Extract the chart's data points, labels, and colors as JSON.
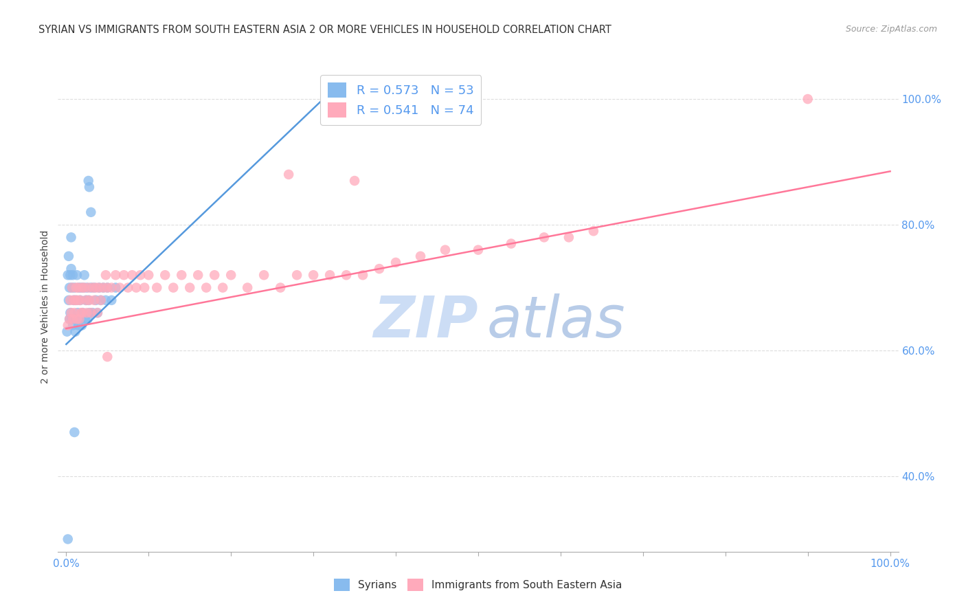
{
  "title": "SYRIAN VS IMMIGRANTS FROM SOUTH EASTERN ASIA 2 OR MORE VEHICLES IN HOUSEHOLD CORRELATION CHART",
  "source": "Source: ZipAtlas.com",
  "ylabel": "2 or more Vehicles in Household",
  "syrians_color": "#88BBEE",
  "sea_color": "#FFAABB",
  "line_blue": "#5599DD",
  "line_pink": "#FF7799",
  "bg_color": "#FFFFFF",
  "grid_color": "#DDDDDD",
  "axis_color": "#5599EE",
  "title_color": "#333333",
  "source_color": "#999999",
  "watermark_zip_color": "#CCDDF5",
  "watermark_atlas_color": "#B8CCE8",
  "syrians_x": [
    0.001,
    0.002,
    0.003,
    0.003,
    0.004,
    0.004,
    0.005,
    0.005,
    0.006,
    0.006,
    0.007,
    0.007,
    0.008,
    0.008,
    0.009,
    0.01,
    0.01,
    0.011,
    0.012,
    0.013,
    0.014,
    0.015,
    0.015,
    0.016,
    0.017,
    0.018,
    0.019,
    0.02,
    0.021,
    0.022,
    0.023,
    0.024,
    0.025,
    0.026,
    0.027,
    0.028,
    0.03,
    0.032,
    0.034,
    0.036,
    0.038,
    0.04,
    0.042,
    0.045,
    0.048,
    0.05,
    0.055,
    0.06,
    0.027,
    0.028,
    0.03,
    0.01,
    0.002
  ],
  "syrians_y": [
    0.63,
    0.72,
    0.68,
    0.75,
    0.65,
    0.7,
    0.66,
    0.72,
    0.73,
    0.78,
    0.65,
    0.7,
    0.64,
    0.72,
    0.68,
    0.65,
    0.7,
    0.63,
    0.68,
    0.72,
    0.66,
    0.64,
    0.7,
    0.65,
    0.68,
    0.7,
    0.64,
    0.66,
    0.7,
    0.72,
    0.65,
    0.68,
    0.7,
    0.65,
    0.68,
    0.66,
    0.7,
    0.66,
    0.7,
    0.68,
    0.66,
    0.7,
    0.68,
    0.7,
    0.68,
    0.7,
    0.68,
    0.7,
    0.87,
    0.86,
    0.82,
    0.47,
    0.3
  ],
  "sea_x": [
    0.002,
    0.004,
    0.005,
    0.006,
    0.007,
    0.008,
    0.009,
    0.01,
    0.011,
    0.012,
    0.013,
    0.014,
    0.015,
    0.016,
    0.017,
    0.018,
    0.019,
    0.02,
    0.022,
    0.024,
    0.025,
    0.027,
    0.028,
    0.03,
    0.032,
    0.034,
    0.036,
    0.038,
    0.04,
    0.042,
    0.045,
    0.048,
    0.05,
    0.055,
    0.06,
    0.065,
    0.07,
    0.075,
    0.08,
    0.085,
    0.09,
    0.095,
    0.1,
    0.11,
    0.12,
    0.13,
    0.14,
    0.15,
    0.16,
    0.17,
    0.18,
    0.19,
    0.2,
    0.22,
    0.24,
    0.26,
    0.28,
    0.3,
    0.32,
    0.34,
    0.36,
    0.38,
    0.4,
    0.43,
    0.46,
    0.5,
    0.54,
    0.58,
    0.61,
    0.64,
    0.27,
    0.35,
    0.05,
    0.9
  ],
  "sea_y": [
    0.64,
    0.65,
    0.68,
    0.66,
    0.7,
    0.65,
    0.68,
    0.66,
    0.68,
    0.7,
    0.65,
    0.68,
    0.7,
    0.65,
    0.68,
    0.66,
    0.7,
    0.66,
    0.7,
    0.68,
    0.66,
    0.7,
    0.68,
    0.66,
    0.7,
    0.68,
    0.7,
    0.66,
    0.7,
    0.68,
    0.7,
    0.72,
    0.7,
    0.7,
    0.72,
    0.7,
    0.72,
    0.7,
    0.72,
    0.7,
    0.72,
    0.7,
    0.72,
    0.7,
    0.72,
    0.7,
    0.72,
    0.7,
    0.72,
    0.7,
    0.72,
    0.7,
    0.72,
    0.7,
    0.72,
    0.7,
    0.72,
    0.72,
    0.72,
    0.72,
    0.72,
    0.73,
    0.74,
    0.75,
    0.76,
    0.76,
    0.77,
    0.78,
    0.78,
    0.79,
    0.88,
    0.87,
    0.59,
    1.0
  ],
  "blue_line_x": [
    0.0,
    0.32
  ],
  "blue_line_y": [
    0.61,
    1.01
  ],
  "pink_line_x": [
    0.0,
    1.0
  ],
  "pink_line_y": [
    0.635,
    0.885
  ],
  "xlim": [
    -0.01,
    1.01
  ],
  "ylim": [
    0.28,
    1.06
  ],
  "yticks": [
    0.4,
    0.6,
    0.8,
    1.0
  ],
  "ytick_labels": [
    "40.0%",
    "60.0%",
    "80.0%",
    "100.0%"
  ],
  "xtick_left_label": "0.0%",
  "xtick_right_label": "100.0%"
}
